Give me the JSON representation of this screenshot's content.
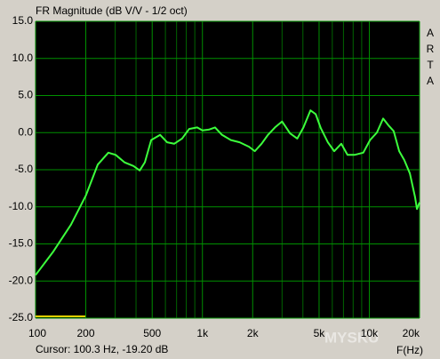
{
  "chart_data": {
    "type": "line",
    "title": "FR Magnitude (dB V/V - 1/2 oct)",
    "side_label": "ARTA",
    "x_label": "F(Hz)",
    "cursor_text": "Cursor: 100.3 Hz, -19.20 dB",
    "watermark": "MYSKU",
    "x": [
      100,
      128,
      163,
      200,
      236,
      273,
      302,
      341,
      386,
      421,
      452,
      493,
      558,
      614,
      677,
      755,
      833,
      930,
      1000,
      1090,
      1190,
      1310,
      1480,
      1670,
      1900,
      2060,
      2260,
      2470,
      2720,
      3000,
      3350,
      3700,
      4030,
      4440,
      4770,
      5120,
      5640,
      6160,
      6790,
      7400,
      8150,
      9200,
      10100,
      11100,
      12100,
      13000,
      14000,
      15100,
      16200,
      17500,
      18800,
      19300,
      20000
    ],
    "values": [
      -19.2,
      -16.0,
      -12.4,
      -8.5,
      -4.3,
      -2.7,
      -3.0,
      -4.0,
      -4.5,
      -5.1,
      -4.0,
      -1.0,
      -0.3,
      -1.3,
      -1.5,
      -0.8,
      0.5,
      0.7,
      0.3,
      0.4,
      0.7,
      -0.3,
      -1.0,
      -1.3,
      -1.9,
      -2.5,
      -1.5,
      -0.3,
      0.7,
      1.5,
      -0.1,
      -0.8,
      0.7,
      3.0,
      2.5,
      0.6,
      -1.3,
      -2.5,
      -1.5,
      -3.0,
      -3.0,
      -2.7,
      -1.0,
      0.0,
      1.9,
      1.0,
      0.2,
      -2.5,
      -3.7,
      -5.5,
      -8.7,
      -10.3,
      -9.4
    ],
    "color": "#3cff3c",
    "grid_color": "#009000",
    "xlim": [
      100,
      20000
    ],
    "ylim": [
      -25,
      15
    ],
    "x_log": true,
    "grid": true,
    "xticks": [
      100,
      200,
      500,
      {
        "value": 1000,
        "label": "1k"
      },
      {
        "value": 2000,
        "label": "2k"
      },
      {
        "value": 5000,
        "label": "5k"
      },
      {
        "value": 10000,
        "label": "10k"
      },
      {
        "value": 20000,
        "label": "20k"
      }
    ],
    "x_minor_ticks": [
      300,
      400,
      600,
      700,
      800,
      900,
      3000,
      4000,
      6000,
      7000,
      8000,
      9000
    ],
    "yticks": [
      {
        "value": 15,
        "label": "15.0"
      },
      {
        "value": 10,
        "label": "10.0"
      },
      {
        "value": 5,
        "label": "5.0"
      },
      {
        "value": 0,
        "label": "0.0"
      },
      {
        "value": -5,
        "label": "-5.0"
      },
      {
        "value": -10,
        "label": "-10.0"
      },
      {
        "value": -15,
        "label": "-15.0"
      },
      {
        "value": -20,
        "label": "-20.0"
      },
      {
        "value": -25,
        "label": "-25.0"
      }
    ]
  }
}
